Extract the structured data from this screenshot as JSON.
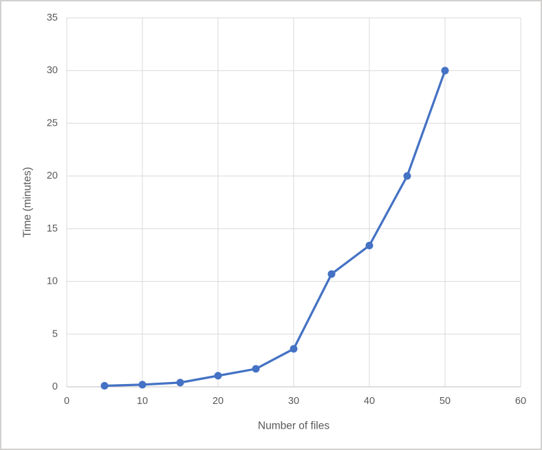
{
  "chart_data": {
    "type": "line",
    "title": "",
    "xlabel": "Number of files",
    "ylabel": "Time (minutes)",
    "x": [
      5,
      10,
      15,
      20,
      25,
      30,
      35,
      40,
      45,
      50
    ],
    "series": [
      {
        "name": "time",
        "values": [
          0.1,
          0.2,
          0.4,
          1.05,
          1.7,
          3.6,
          10.7,
          13.4,
          20,
          30
        ]
      }
    ],
    "xlim": [
      0,
      60
    ],
    "ylim": [
      0,
      35
    ],
    "xticks": [
      0,
      10,
      20,
      30,
      40,
      50,
      60
    ],
    "yticks": [
      0,
      5,
      10,
      15,
      20,
      25,
      30,
      35
    ],
    "grid": true,
    "legend": false,
    "colors": {
      "line": "#4472C4",
      "marker": "#4472C4",
      "grid": "#D9D9D9",
      "axis_line": "#BFBFBF",
      "axis_text": "#595959",
      "frame_border": "#D2D0CE"
    }
  }
}
